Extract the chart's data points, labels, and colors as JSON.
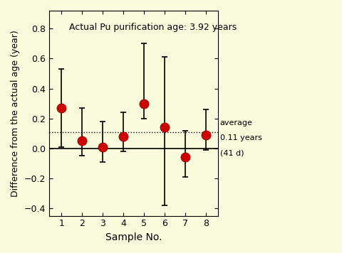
{
  "x": [
    1,
    2,
    3,
    4,
    5,
    6,
    7,
    8
  ],
  "y": [
    0.27,
    0.05,
    0.01,
    0.08,
    0.3,
    0.14,
    -0.06,
    0.09
  ],
  "yerr_upper": [
    0.26,
    0.22,
    0.17,
    0.16,
    0.4,
    0.47,
    0.18,
    0.17
  ],
  "yerr_lower": [
    0.26,
    0.1,
    0.1,
    0.1,
    0.1,
    0.52,
    0.13,
    0.1
  ],
  "average": 0.11,
  "annotation_text": "Actual Pu purification age: 3.92 years",
  "xlabel": "Sample No.",
  "ylabel": "Difference from the actual age (year)",
  "ylim": [
    -0.45,
    0.92
  ],
  "yticks": [
    -0.4,
    -0.2,
    0.0,
    0.2,
    0.4,
    0.6,
    0.8
  ],
  "xticks": [
    1,
    2,
    3,
    4,
    5,
    6,
    7,
    8
  ],
  "dot_color": "#cc0000",
  "line_color": "black",
  "background_color": "#fafadc",
  "average_label_1": "average",
  "average_label_2": "0.11 years",
  "average_label_3": "(41 d)"
}
